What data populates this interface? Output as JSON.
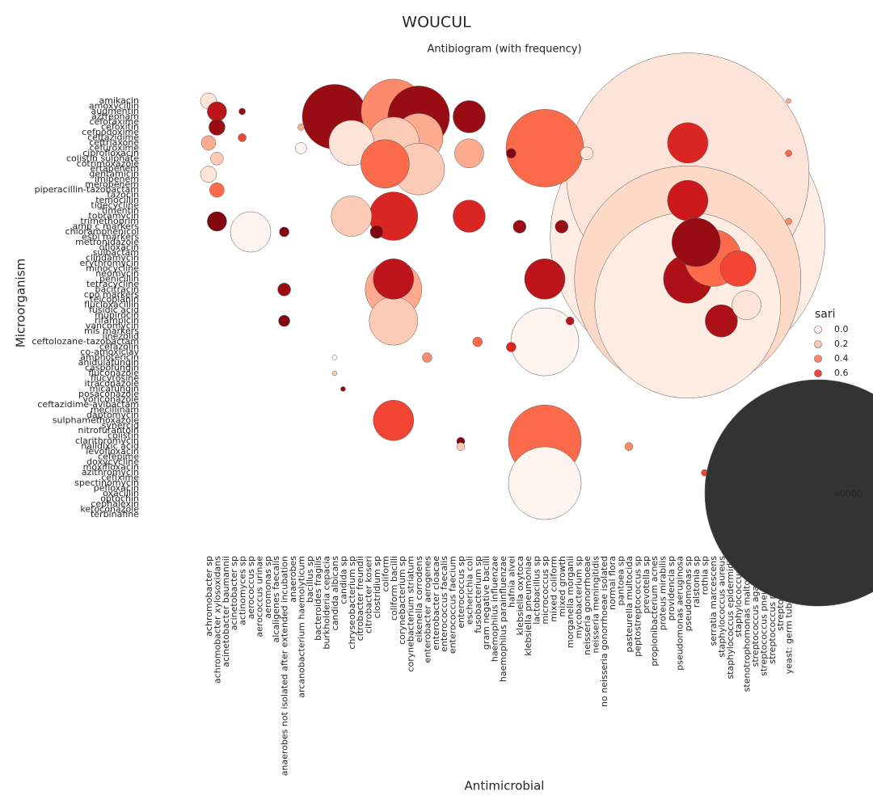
{
  "chart_data": {
    "type": "scatter",
    "title": "WOUCUL",
    "subtitle": "Antibiogram (with frequency)",
    "x_label": "Antimicrobial",
    "y_label": "Microorganism",
    "categories": [
      "achromobacter sp",
      "achromobacter xylosoxidans",
      "acinetobacter baumannii",
      "acinetobacter sp",
      "actinomyces sp",
      "aerococcus sp",
      "aerococcus urinae",
      "aeromonas sp",
      "alcaligenes faecalis",
      "anaerobes not isolated after extended incubation",
      "anaerobes",
      "arcanobacterium haemolyticum",
      "bacillus sp",
      "bacteroides fragilis",
      "burkholderia cepacia",
      "candida albicans",
      "candida sp",
      "chryseobacterium sp",
      "citrobacter freundii",
      "citrobacter koseri",
      "clostridium sp",
      "coliform",
      "coliform bacilli",
      "corynebacterium sp",
      "corynebacterium striatum",
      "eikenella corrodens",
      "enterobacter aerogenes",
      "enterobacter cloacae",
      "enterococcus faecalis",
      "enterococcus faecium",
      "enterococcus sp",
      "escherichia coli",
      "fusobacterium sp",
      "gram negative bacilli",
      "haemophilus influenzae",
      "haemophilus parainfluenzae",
      "hafnia alvei",
      "klebsiella oxytoca",
      "klebsiella pneumoniae",
      "lactobacillus sp",
      "micrococcus sp",
      "mixed coliform",
      "mixed growth",
      "morganella morganii",
      "mycobacterium sp",
      "neisseria gonorrhoeae",
      "neisseria meningitidis",
      "no neisseria gonorrhoeae isolated",
      "normal flora",
      "pantoea sp",
      "pasteurella multocida",
      "peptostreptococcus sp",
      "prevotella sp",
      "propionibacterium acnes",
      "proteus mirabilis",
      "providencia sp",
      "pseudomonas aeruginosa",
      "pseudomonas sp",
      "ralstonia sp",
      "rothia sp",
      "serratia marcescens",
      "staphylococcus aureus",
      "staphylococcus epidermidis",
      "staphylococcus sp",
      "stenotrophomonas maltophilia",
      "streptococcus agalactiae",
      "streptococcus pneumoniae",
      "streptococcus pyogenes",
      "streptococcus sp",
      "yeast: germ tube negative"
    ],
    "y_categories": [
      "amikacin",
      "amoxycillin",
      "augmentin",
      "aztreonam",
      "cefotaxime",
      "cefoxitin",
      "cefpodoxime",
      "ceftazidime",
      "ceftriaxone",
      "cefuroxime",
      "ciprofloxacin",
      "colistin sulphate",
      "cotrimoxazole",
      "ertapenem",
      "gentamicin",
      "imipenem",
      "meropenem",
      "piperacillin-tazobactam",
      "tazocin",
      "temocillin",
      "tigecycline",
      "timentin",
      "tobramycin",
      "trimethoprim",
      "amp c markers",
      "chloramphenicol",
      "esbl markers",
      "metronidazole",
      "ofloxacin",
      "sulbactam",
      "clindamycin",
      "erythromycin",
      "minocycline",
      "neomycin",
      "penicillin",
      "tetracycline",
      "bacitracin",
      "cpo markers",
      "teicoplanin",
      "flucloxacillin",
      "fusidic acid",
      "mupirocin",
      "rifampicin",
      "vancomycin",
      "mls markers",
      "linezolid",
      "ceftolozane-tazobactam",
      "cefazolin",
      "co-amoxiclav",
      "amphotericin",
      "anidulafungin",
      "caspofungin",
      "fluconazole",
      "flucytosine",
      "itraconazole",
      "micafungin",
      "posaconazole",
      "voriconazole",
      "ceftazidime-avibactam",
      "mecillinam",
      "daptomycin",
      "sulphamethoxazole",
      "synercid",
      "nitrofurantoin",
      "colistin",
      "clarithromycin",
      "nalidixic acid",
      "levofloxacin",
      "cefepime",
      "doxycycline",
      "moxifloxacin",
      "azithromycin",
      "cefixime",
      "spectinomycin",
      "pefloxacin",
      "oxacillin",
      "optochin",
      "cephalexin",
      "ketoconazole",
      "terbinafine"
    ],
    "x": [
      "pseudomonas sp",
      "pseudomonas sp",
      "pseudomonas sp",
      "pseudomonas sp",
      "candida albicans",
      "coliform bacilli",
      "eikenella corrodens",
      "eikenella corrodens",
      "coliform bacilli",
      "chryseobacterium sp",
      "eikenella corrodens",
      "coliform",
      "coliform bacilli",
      "chryseobacterium sp",
      "aerococcus sp",
      "coliform bacilli",
      "coliform bacilli",
      "coliform bacilli",
      "escherichia coli",
      "escherichia coli",
      "escherichia coli",
      "coliform bacilli",
      "micrococcus sp",
      "micrococcus sp",
      "micrococcus sp",
      "micrococcus sp",
      "micrococcus sp",
      "pseudomonas sp",
      "pseudomonas sp",
      "pseudomonas sp",
      "serratia marcescens",
      "staphylococcus sp",
      "staphylococcus aureus",
      "stenotrophomonas maltophilia",
      "ralstonia sp",
      "neisseria gonorrhoeae",
      "achromobacter sp",
      "achromobacter xylosoxidans",
      "achromobacter xylosoxidans",
      "achromobacter sp",
      "achromobacter xylosoxidans",
      "achromobacter sp",
      "achromobacter xylosoxidans",
      "achromobacter xylosoxidans",
      "actinomyces sp",
      "actinomyces sp",
      "anaerobes not isolated after extended incubation",
      "anaerobes not isolated after extended incubation",
      "anaerobes not isolated after extended incubation",
      "arcanobacterium haemolyticum",
      "arcanobacterium haemolyticum",
      "candida albicans",
      "candida albicans",
      "candida sp",
      "enterococcus sp",
      "enterococcus sp",
      "hafnia alvei",
      "hafnia alvei",
      "klebsiella oxytoca",
      "mixed growth",
      "morganella morganii",
      "pasteurella multocida",
      "rothia sp",
      "yeast: germ tube negative",
      "yeast: germ tube negative",
      "yeast: germ tube negative",
      "clostridium sp",
      "enterobacter aerogenes",
      "fusobacterium sp"
    ],
    "y": [
      "esbl markers",
      "gentamicin",
      "penicillin",
      "flucloxacillin",
      "aztreonam",
      "augmentin",
      "aztreonam",
      "ceftazidime",
      "ceftriaxone",
      "ceftriaxone",
      "ertapenem",
      "cotrimoxazole",
      "tobramycin",
      "tobramycin",
      "chloramphenicol",
      "bacitracin",
      "rifampicin",
      "penicillin",
      "tobramycin",
      "aztreonam",
      "ciprofloxacin",
      "sulphamethoxazole",
      "cefuroxime",
      "clarithromycin",
      "spectinomycin",
      "ceftolozane-tazobactam",
      "penicillin",
      "ceftriaxone",
      "temocillin",
      "penicillin",
      "clindamycin",
      "minocycline",
      "rifampicin",
      "flucloxacillin",
      "metronidazole",
      "ciprofloxacin",
      "amikacin",
      "augmentin",
      "cefoxitin",
      "ceftriaxone",
      "colistin sulphate",
      "gentamicin",
      "piperacillin-tazobactam",
      "trimethoprim",
      "augmentin",
      "ceftazidime",
      "chloramphenicol",
      "bacitracin",
      "rifampicin",
      "cefoxitin",
      "cefuroxime",
      "amphotericin",
      "fluconazole",
      "micafungin",
      "clarithromycin",
      "nalidixic acid",
      "ciprofloxacin",
      "cefazolin",
      "amp c markers",
      "amp c markers",
      "rifampicin",
      "nalidixic acid",
      "azithromycin",
      "amikacin",
      "ciprofloxacin",
      "trimethoprim",
      "chloramphenicol",
      "amphotericin",
      "ceftolozane-tazobactam"
    ],
    "size": [
      59000,
      46000,
      40000,
      27000,
      3265,
      3265,
      2950,
      1840,
      2090,
      1600,
      2090,
      1840,
      1840,
      1280,
      1280,
      2500,
      1840,
      1280,
      816,
      816,
      660,
      1280,
      4700,
      4130,
      4130,
      3600,
      1280,
      1280,
      1280,
      1840,
      2500,
      990,
      816,
      660,
      1840,
      131,
      204,
      294,
      204,
      165,
      131,
      204,
      165,
      294,
      33,
      51,
      73,
      131,
      100,
      33,
      100,
      18,
      18,
      18,
      51,
      51,
      73,
      73,
      131,
      131,
      51,
      51,
      33,
      18,
      33,
      33,
      131,
      73,
      73
    ],
    "sari": [
      0.05,
      0.1,
      0.15,
      0.05,
      0.9,
      0.4,
      0.9,
      0.3,
      0.2,
      0.1,
      0.2,
      0.5,
      0.7,
      0.2,
      0,
      0.3,
      0.2,
      0.8,
      0.7,
      0.9,
      0.3,
      0.6,
      0.5,
      0.5,
      0,
      0,
      0.8,
      0.7,
      0.75,
      0.85,
      0.5,
      0.6,
      0.85,
      0.1,
      0.9,
      0.1,
      0.1,
      0.8,
      0.9,
      0.3,
      0.2,
      0.1,
      0.5,
      0.95,
      0.9,
      0.6,
      0.95,
      0.9,
      0.95,
      0.3,
      0,
      0,
      0.2,
      0.9,
      0.95,
      0.2,
      0.95,
      0.7,
      0.9,
      0.9,
      0.8,
      0.4,
      0.6,
      0.3,
      0.5,
      0.4,
      0.95,
      0.4,
      0.5
    ],
    "colormap": [
      "#fff5f0",
      "#fee0d2",
      "#fcbba1",
      "#fc9272",
      "#fb6a4a",
      "#ef3b2c",
      "#cb181d",
      "#a50f15",
      "#67000d"
    ],
    "edge_color": "#5a5a5a",
    "legend": {
      "hue_title": "sari",
      "hue_ticks": [
        {
          "value": 0,
          "label": "0.0"
        },
        0.2,
        0.4,
        0.6
      ],
      "size_ticks": [
        40000
      ],
      "size_color": "#333333"
    }
  }
}
